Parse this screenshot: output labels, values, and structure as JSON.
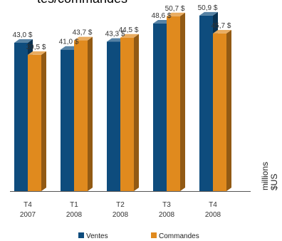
{
  "chart_data": {
    "type": "bar",
    "title": "tes/commandes",
    "categories": [
      {
        "line1": "T4",
        "line2": "2007"
      },
      {
        "line1": "T1",
        "line2": "2008"
      },
      {
        "line1": "T2",
        "line2": "2008"
      },
      {
        "line1": "T3",
        "line2": "2008"
      },
      {
        "line1": "T4",
        "line2": "2008"
      }
    ],
    "series": [
      {
        "name": "Ventes",
        "color": "#0e4c7d",
        "values": [
          43.0,
          41.0,
          43.3,
          48.6,
          50.9
        ],
        "labels": [
          "43,0 $",
          "41,0 $",
          "43,3 $",
          "48,6 $",
          "50,9 $"
        ]
      },
      {
        "name": "Commandes",
        "color": "#e08a1e",
        "values": [
          39.5,
          43.7,
          44.5,
          50.7,
          45.7
        ],
        "labels": [
          "39,5 $",
          "43,7 $",
          "44,5 $",
          "50,7 $",
          "45,7 $"
        ]
      }
    ],
    "ylabel": "millions $US",
    "ylabel_lines": [
      "millions",
      "$US"
    ],
    "ylim": [
      0,
      52.5
    ],
    "grid": false,
    "legend_position": "bottom"
  }
}
